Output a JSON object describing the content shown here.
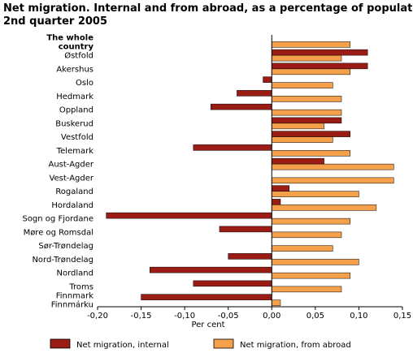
{
  "chart_data": {
    "type": "bar",
    "orientation": "horizontal",
    "title_lines": [
      "Net migration. Internal and from abroad, as a percentage of population.",
      "2nd quarter 2005"
    ],
    "xlabel": "Per cent",
    "ylabel": "",
    "xlim": [
      -0.2,
      0.15
    ],
    "x_ticks": [
      -0.2,
      -0.15,
      -0.1,
      -0.05,
      0.0,
      0.05,
      0.1,
      0.15
    ],
    "x_tick_labels": [
      "-0,20",
      "-0,15",
      "-0,10",
      "-0,05",
      "0,00",
      "0,05",
      "0,10",
      "0,15"
    ],
    "grid": false,
    "legend_position": "bottom",
    "categories": [
      [
        "The whole",
        "country"
      ],
      [
        "Østfold"
      ],
      [
        "Akershus"
      ],
      [
        "Oslo"
      ],
      [
        "Hedmark"
      ],
      [
        "Oppland"
      ],
      [
        "Buskerud"
      ],
      [
        "Vestfold"
      ],
      [
        "Telemark"
      ],
      [
        "Aust-Agder"
      ],
      [
        "Vest-Agder"
      ],
      [
        "Rogaland"
      ],
      [
        "Hordaland"
      ],
      [
        "Sogn og Fjordane"
      ],
      [
        "Møre og Romsdal"
      ],
      [
        "Sør-Trøndelag"
      ],
      [
        "Nord-Trøndelag"
      ],
      [
        "Nordland"
      ],
      [
        "Troms"
      ],
      [
        "Finnmark",
        "Finnmárku"
      ]
    ],
    "series": [
      {
        "name": "Net migration, internal",
        "color": "#9b1c14",
        "values": [
          0.0,
          0.11,
          0.11,
          -0.01,
          -0.04,
          -0.07,
          0.08,
          0.09,
          -0.09,
          0.06,
          0.0,
          0.02,
          0.01,
          -0.19,
          -0.06,
          0.0,
          -0.05,
          -0.14,
          -0.09,
          -0.15
        ]
      },
      {
        "name": "Net migration, from abroad",
        "color": "#f5a04a",
        "values": [
          0.09,
          0.08,
          0.09,
          0.07,
          0.08,
          0.08,
          0.06,
          0.07,
          0.09,
          0.14,
          0.14,
          0.1,
          0.12,
          0.09,
          0.08,
          0.07,
          0.1,
          0.09,
          0.08,
          0.01
        ]
      }
    ]
  }
}
